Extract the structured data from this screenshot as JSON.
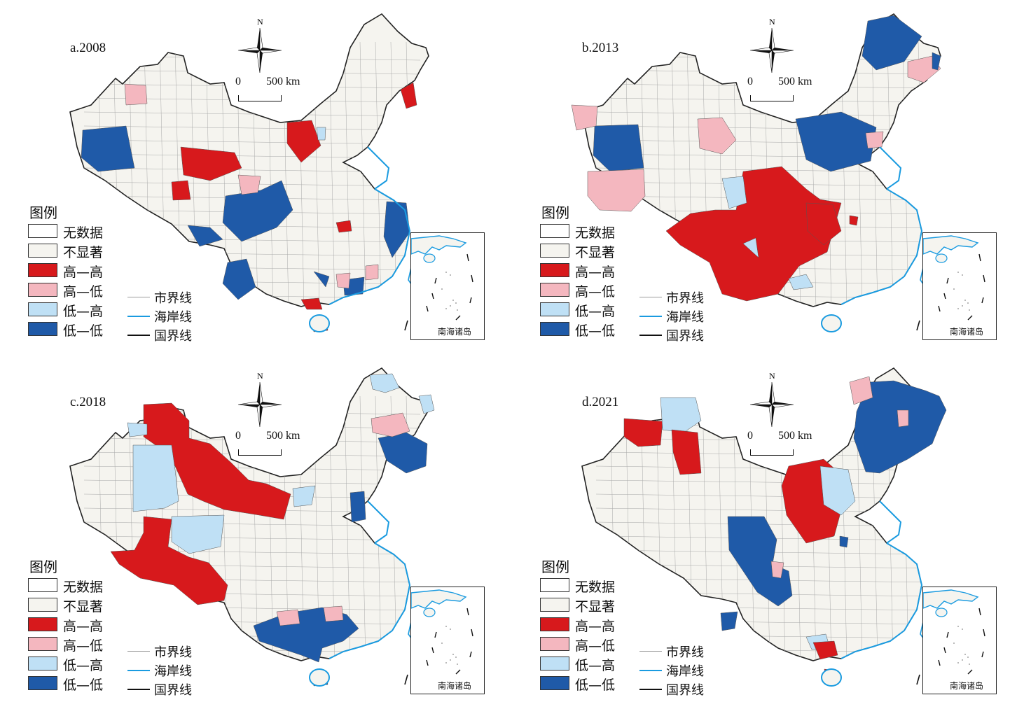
{
  "compass_label": "N",
  "scale": {
    "zero": "0",
    "distance": "500 km"
  },
  "legend": {
    "title": "图例",
    "items": [
      {
        "label": "无数据",
        "color": "#ffffff"
      },
      {
        "label": "不显著",
        "color": "#f5f4ef"
      },
      {
        "label": "高—高",
        "color": "#d7191c"
      },
      {
        "label": "高—低",
        "color": "#f4b7bf"
      },
      {
        "label": "低—高",
        "color": "#bfe0f5"
      },
      {
        "label": "低—低",
        "color": "#1f5aa8"
      }
    ],
    "lines": [
      {
        "label": "市界线",
        "color": "#9a9a9a"
      },
      {
        "label": "海岸线",
        "color": "#1a9be0"
      },
      {
        "label": "国界线",
        "color": "#111111"
      }
    ]
  },
  "inset_label": "南海诸岛",
  "panels": [
    {
      "title": "a.2008"
    },
    {
      "title": "b.2013"
    },
    {
      "title": "c.2018"
    },
    {
      "title": "d.2021"
    }
  ]
}
